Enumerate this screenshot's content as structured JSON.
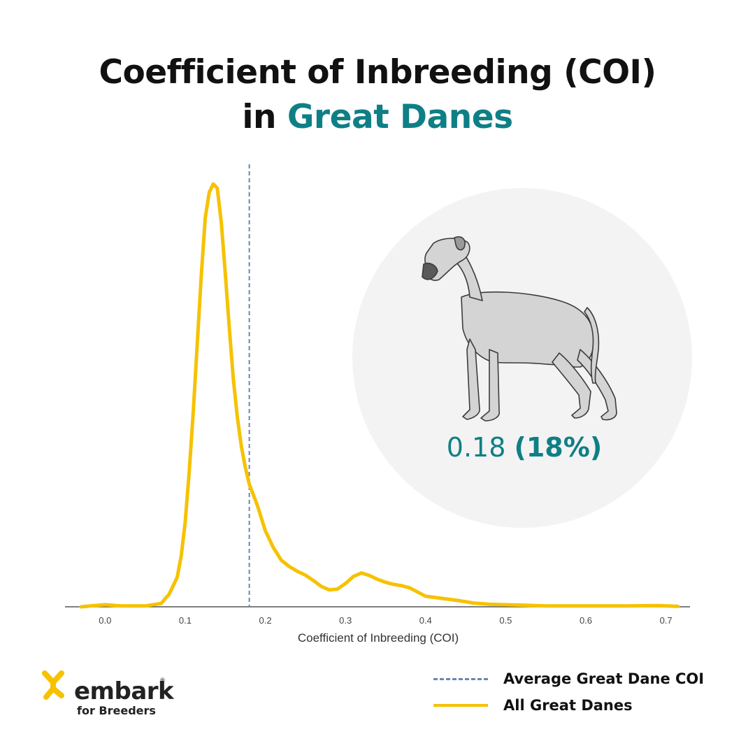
{
  "header": {
    "title_line1": "Coefficient of Inbreeding (COI)",
    "title_line2_prefix": "in",
    "title_line2_accent": "Great Danes"
  },
  "stat": {
    "value": "0.18",
    "percent": "(18%)"
  },
  "legend": {
    "average_label": "Average Great Dane COI",
    "all_label": "All Great Danes"
  },
  "logo": {
    "word": "embark",
    "reg": "®",
    "sub": "for Breeders"
  },
  "colors": {
    "accent": "#0f7f86",
    "curve": "#f6c200",
    "average_line": "#6a86b5",
    "circle": "#f3f3f3"
  },
  "icons": {
    "dog": "great-dane-illustration",
    "logo_mark": "embark-logo-icon"
  },
  "chart_data": {
    "type": "line",
    "title": "Coefficient of Inbreeding (COI) in Great Danes",
    "xlabel": "Coefficient of Inbreeding (COI)",
    "ylabel": "",
    "xlim": [
      -0.05,
      0.73
    ],
    "ylim": [
      0,
      1.03
    ],
    "xticks": [
      0.0,
      0.1,
      0.2,
      0.3,
      0.4,
      0.5,
      0.6,
      0.7
    ],
    "tick_labels": [
      "0.0",
      "0.1",
      "0.2",
      "0.3",
      "0.4",
      "0.5",
      "0.6",
      "0.7"
    ],
    "average_line": {
      "name": "Average Great Dane COI",
      "x": 0.18
    },
    "series": [
      {
        "name": "All Great Danes",
        "x": [
          -0.03,
          0.0,
          0.02,
          0.05,
          0.07,
          0.08,
          0.09,
          0.095,
          0.1,
          0.105,
          0.11,
          0.115,
          0.12,
          0.125,
          0.13,
          0.135,
          0.14,
          0.145,
          0.15,
          0.155,
          0.16,
          0.165,
          0.17,
          0.175,
          0.18,
          0.19,
          0.2,
          0.21,
          0.22,
          0.23,
          0.24,
          0.25,
          0.26,
          0.27,
          0.28,
          0.29,
          0.3,
          0.31,
          0.32,
          0.33,
          0.34,
          0.35,
          0.36,
          0.37,
          0.38,
          0.39,
          0.4,
          0.42,
          0.44,
          0.46,
          0.48,
          0.5,
          0.52,
          0.55,
          0.6,
          0.65,
          0.69,
          0.715
        ],
        "values": [
          0.0,
          0.005,
          0.002,
          0.002,
          0.008,
          0.03,
          0.07,
          0.12,
          0.2,
          0.32,
          0.46,
          0.62,
          0.78,
          0.92,
          0.98,
          1.0,
          0.99,
          0.91,
          0.79,
          0.66,
          0.54,
          0.45,
          0.38,
          0.33,
          0.29,
          0.24,
          0.18,
          0.14,
          0.11,
          0.095,
          0.084,
          0.075,
          0.062,
          0.048,
          0.04,
          0.042,
          0.055,
          0.072,
          0.08,
          0.074,
          0.065,
          0.058,
          0.053,
          0.05,
          0.045,
          0.035,
          0.025,
          0.02,
          0.015,
          0.009,
          0.006,
          0.005,
          0.004,
          0.002,
          0.002,
          0.002,
          0.003,
          0.001
        ]
      }
    ]
  }
}
